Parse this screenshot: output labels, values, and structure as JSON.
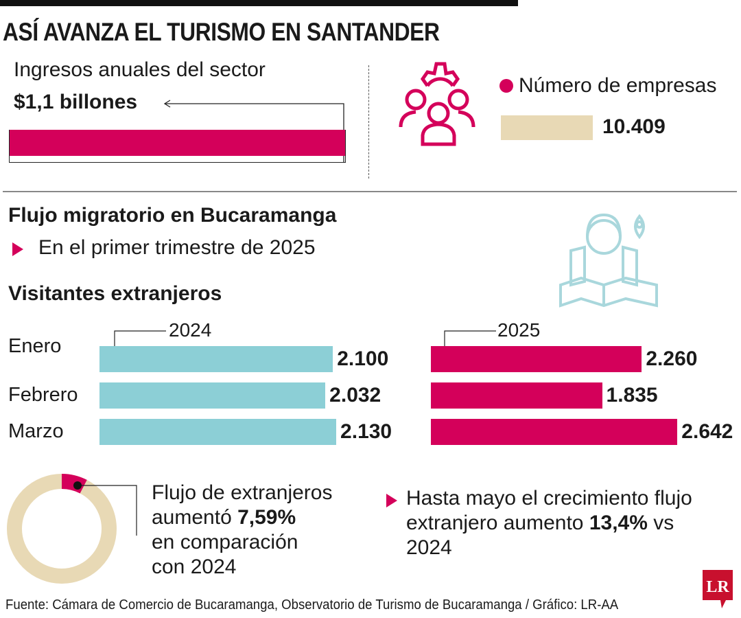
{
  "title": "ASÍ AVANZA EL TURISMO EN SANTANDER",
  "colors": {
    "magenta": "#d4005a",
    "teal": "#8ccfd6",
    "beige": "#e8d9b5",
    "icon_teal": "#a9d7dc"
  },
  "ingresos": {
    "label": "Ingresos anuales del sector",
    "value": "$1,1 billones"
  },
  "empresas": {
    "label": "Número de empresas",
    "value": "10.409",
    "icon": "people-gear-icon"
  },
  "flujo": {
    "heading": "Flujo migratorio en Bucaramanga",
    "subheading": "En el primer trimestre de 2025",
    "section": "Visitantes extranjeros",
    "icon": "traveler-map-icon"
  },
  "chart_data": {
    "type": "bar",
    "orientation": "horizontal",
    "categories": [
      "Enero",
      "Febrero",
      "Marzo"
    ],
    "series": [
      {
        "name": "2024",
        "values": [
          2100,
          2032,
          2130
        ],
        "labels": [
          "2.100",
          "2.032",
          "2.130"
        ],
        "color": "#8ccfd6"
      },
      {
        "name": "2025",
        "values": [
          2260,
          1835,
          2642
        ],
        "labels": [
          "2.260",
          "1.835",
          "2.642"
        ],
        "color": "#d4005a"
      }
    ]
  },
  "donut": {
    "value_percent": 7.59,
    "line1": "Flujo de extranjeros",
    "line2_pre": "aumentó ",
    "line2_bold": "7,59%",
    "line3": "en comparación",
    "line4": "con 2024"
  },
  "note": {
    "line1": "Hasta mayo el crecimiento flujo",
    "line2_pre": "extranjero aumento ",
    "line2_bold": "13,4%",
    "line2_post": " vs",
    "line3": "2024"
  },
  "source": "Fuente: Cámara de Comercio de Bucaramanga, Observatorio de Turismo de Bucaramanga / Gráfico: LR-AA",
  "logo": "LR"
}
